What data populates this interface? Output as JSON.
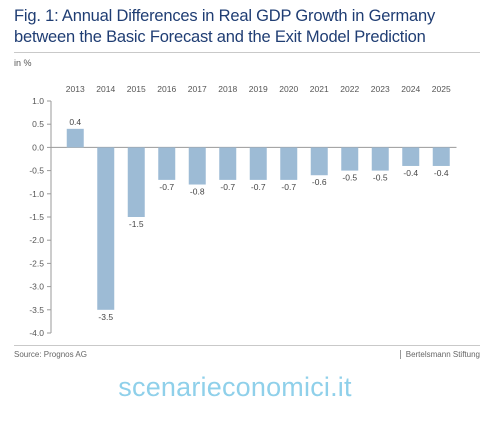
{
  "header": {
    "title_line1": "Fig. 1: Annual Differences in Real GDP Growth in Germany",
    "title_line2": "between the Basic Forecast and the Exit Model Prediction",
    "unit": "in %"
  },
  "footer": {
    "source": "Source: Prognos AG",
    "credit": "Bertelsmann Stiftung"
  },
  "watermark": "scenarieconomici.it",
  "colors": {
    "bar": "#9dbbd5",
    "axis": "#9a9a9a",
    "title": "#1f3d73"
  },
  "chart_data": {
    "type": "bar",
    "title": "Fig. 1: Annual Differences in Real GDP Growth in Germany between the Basic Forecast and the Exit Model Prediction",
    "ylabel": "in %",
    "xlabel": "",
    "categories": [
      "2013",
      "2014",
      "2015",
      "2016",
      "2017",
      "2018",
      "2019",
      "2020",
      "2021",
      "2022",
      "2023",
      "2024",
      "2025"
    ],
    "values": [
      0.4,
      -3.5,
      -1.5,
      -0.7,
      -0.8,
      -0.7,
      -0.7,
      -0.7,
      -0.6,
      -0.5,
      -0.5,
      -0.4,
      -0.4
    ],
    "data_labels": [
      "0.4",
      "-3.5",
      "-1.5",
      "-0.7",
      "-0.8",
      "-0.7",
      "-0.7",
      "-0.7",
      "-0.6",
      "-0.5",
      "-0.5",
      "-0.4",
      "-0.4"
    ],
    "ylim": [
      -4.0,
      1.0
    ],
    "yticks": [
      1.0,
      0.5,
      0.0,
      -0.5,
      -1.0,
      -1.5,
      -2.0,
      -2.5,
      -3.0,
      -3.5,
      -4.0
    ],
    "ytick_labels": [
      "1.0",
      "0.5",
      "0.0",
      "-0.5",
      "-1.0",
      "-1.5",
      "-2.0",
      "-2.5",
      "-3.0",
      "-3.5",
      "-4.0"
    ],
    "grid": false,
    "legend": "none",
    "x_labels_position": "top"
  }
}
